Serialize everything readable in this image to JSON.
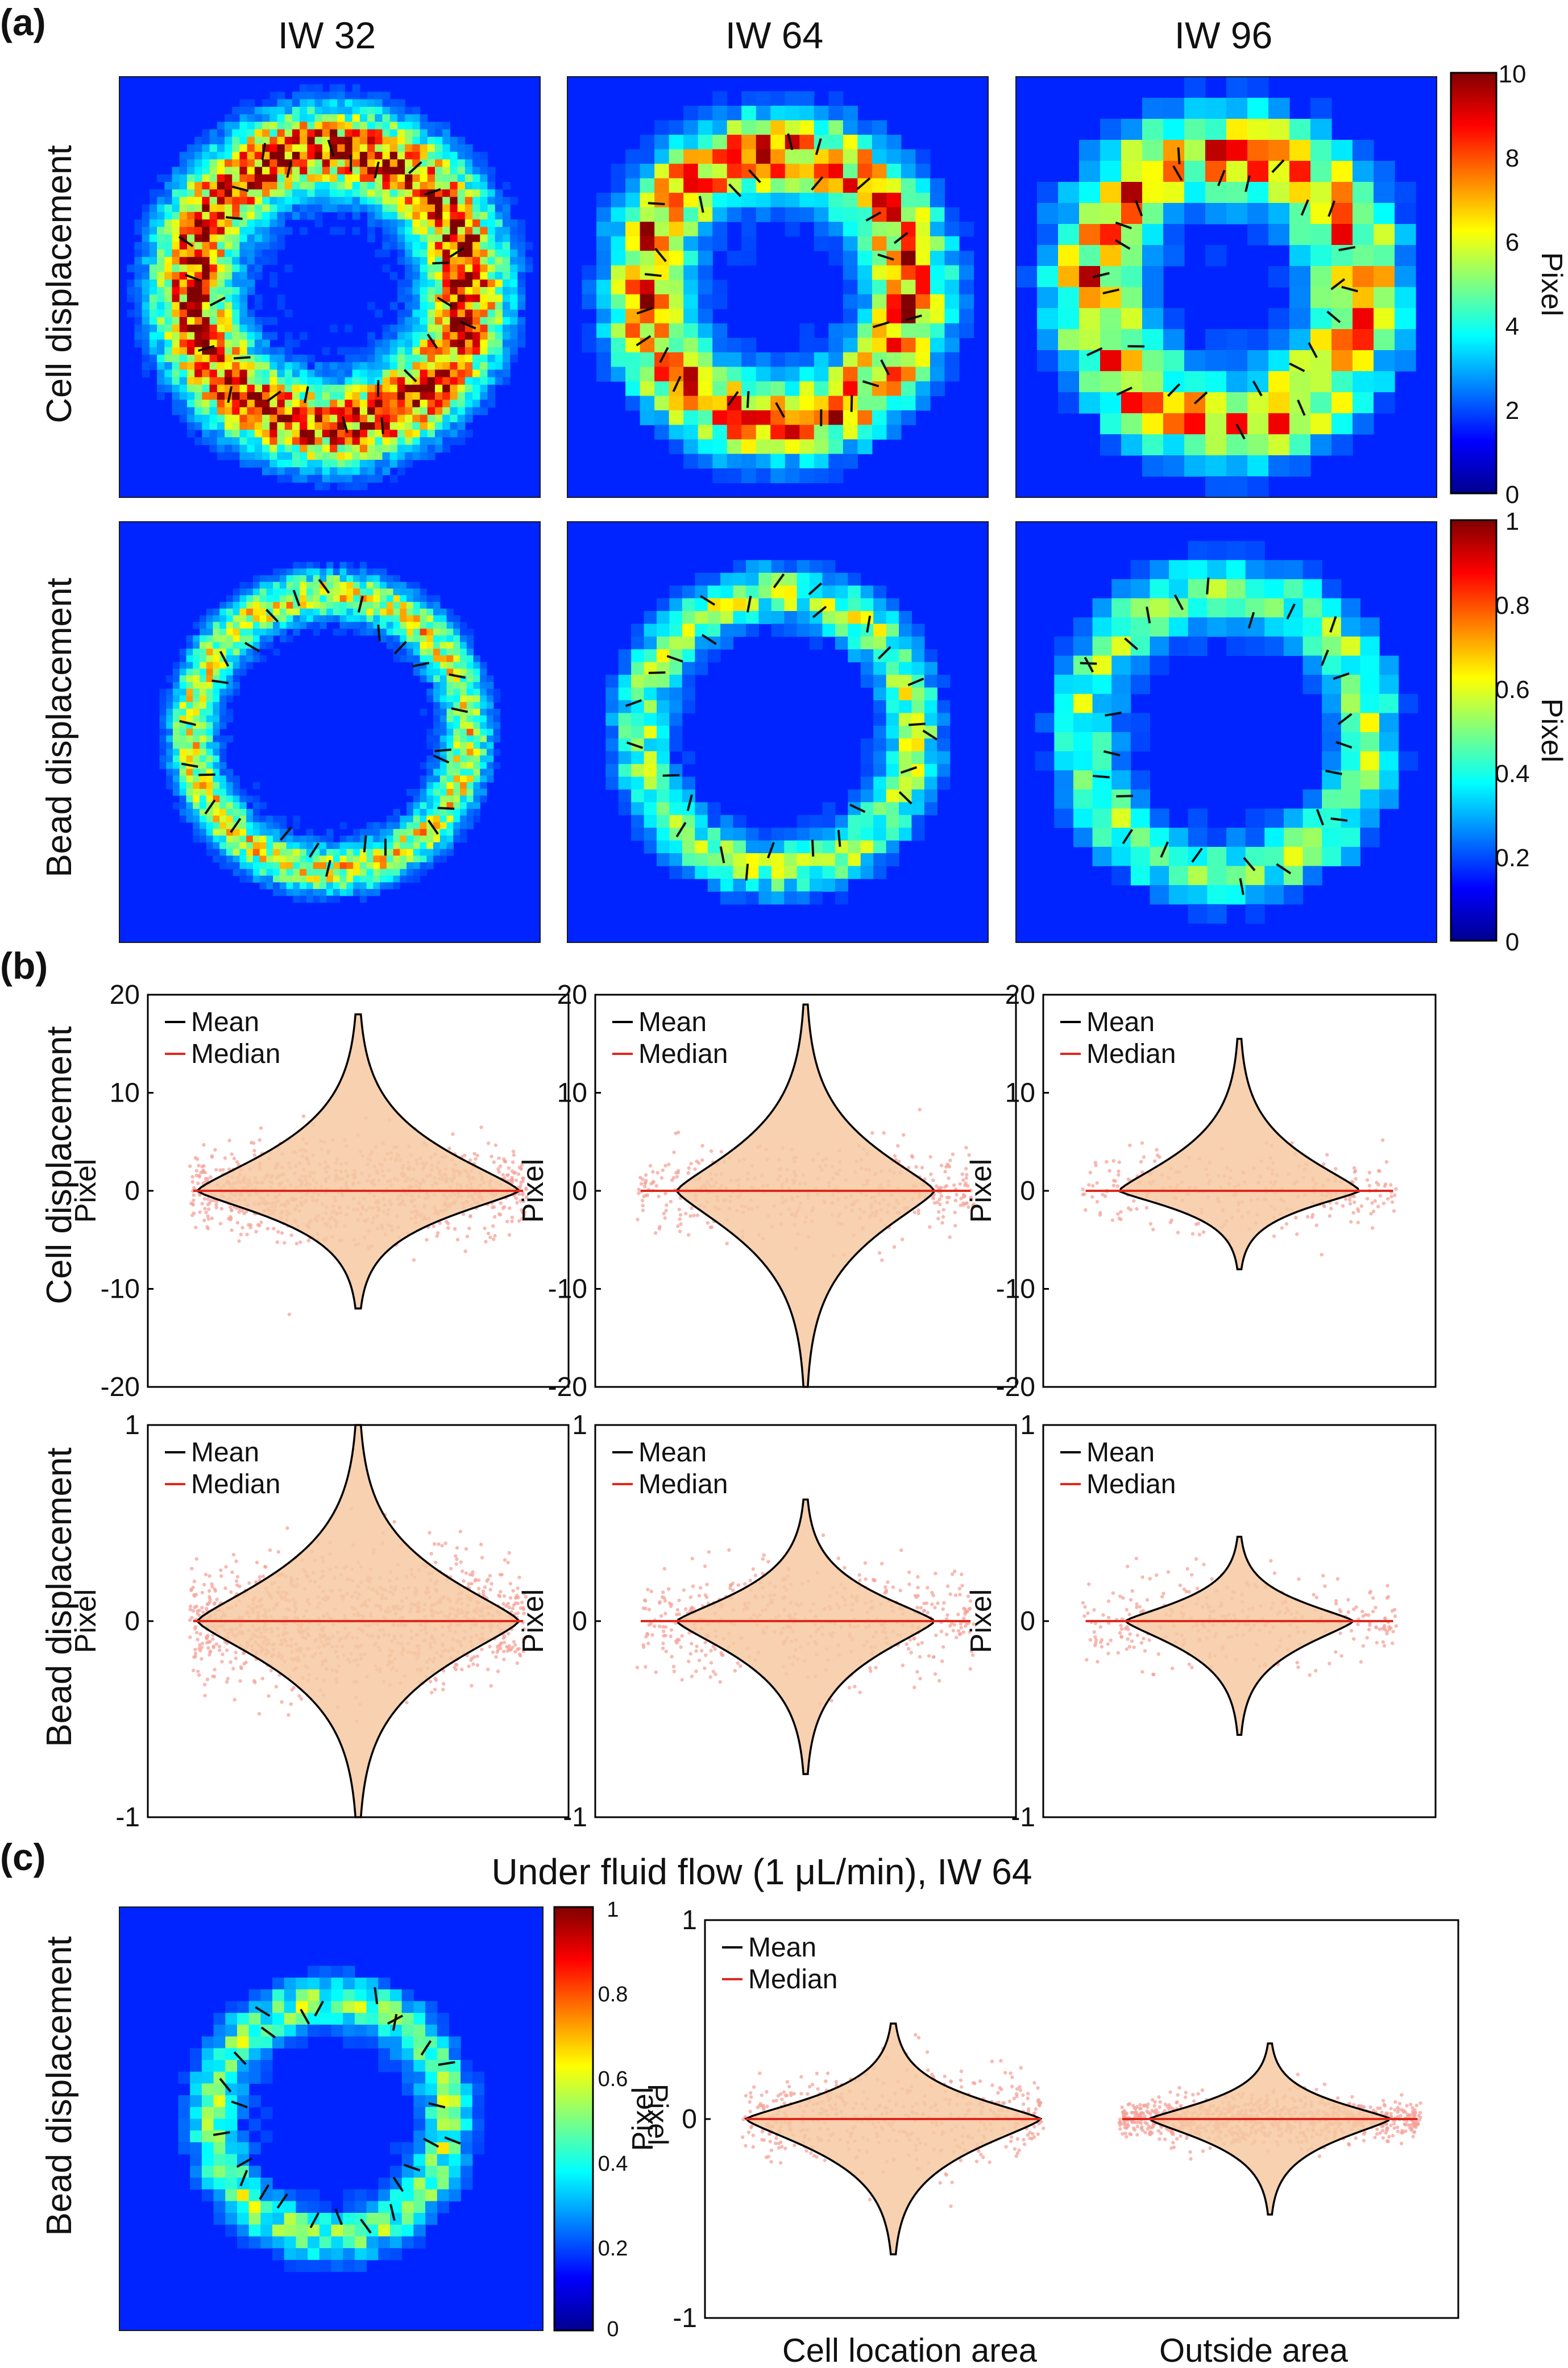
{
  "panels": {
    "a": "(a)",
    "b": "(b)",
    "c": "(c)"
  },
  "columns": [
    "IW 32",
    "IW 64",
    "IW 96"
  ],
  "row_labels": {
    "cell": "Cell displacement",
    "bead": "Bead displacement"
  },
  "colorbar_label": "Pixel",
  "colorbar_cell": {
    "ticks": [
      "10",
      "8",
      "6",
      "4",
      "2",
      "0"
    ],
    "range": [
      0,
      10
    ]
  },
  "colorbar_bead": {
    "ticks": [
      "1",
      "0.8",
      "0.6",
      "0.4",
      "0.2",
      "0"
    ],
    "range": [
      0,
      1
    ]
  },
  "colors": {
    "mean": "#000000",
    "median": "#e0281c",
    "scatter": "#f4a39a",
    "violin_fill": "#f6c9a2",
    "map_background": "#0a2fc8"
  },
  "heatmaps": [
    {
      "row": "cell",
      "column": "IW 32",
      "ring_radius": 0.33,
      "ring_width": 0.09,
      "peak": 0.85,
      "grain": 0.018
    },
    {
      "row": "cell",
      "column": "IW 64",
      "ring_radius": 0.32,
      "ring_width": 0.09,
      "peak": 0.75,
      "grain": 0.034
    },
    {
      "row": "cell",
      "column": "IW 96",
      "ring_radius": 0.32,
      "ring_width": 0.1,
      "peak": 0.7,
      "grain": 0.05
    },
    {
      "row": "bead",
      "column": "IW 32",
      "ring_radius": 0.33,
      "ring_width": 0.05,
      "peak": 0.55,
      "grain": 0.016
    },
    {
      "row": "bead",
      "column": "IW 64",
      "ring_radius": 0.33,
      "ring_width": 0.06,
      "peak": 0.45,
      "grain": 0.03
    },
    {
      "row": "bead",
      "column": "IW 96",
      "ring_radius": 0.34,
      "ring_width": 0.07,
      "peak": 0.42,
      "grain": 0.045
    }
  ],
  "chart_data": [
    {
      "type": "violin",
      "panel": "b",
      "row": "cell",
      "column": "IW 32",
      "ylabel": "Pixel",
      "ylim": [
        -20,
        20
      ],
      "yticks": [
        20,
        10,
        0,
        -10,
        -20
      ],
      "legend": [
        "Mean",
        "Median"
      ],
      "legend_placement": "top-left",
      "series": [
        {
          "name": "IW 32 cell",
          "max": 18,
          "min": -12,
          "body_width": 4.0,
          "scatter_spread": 6.0,
          "points": 900
        }
      ]
    },
    {
      "type": "violin",
      "panel": "b",
      "row": "cell",
      "column": "IW 64",
      "ylabel": "Pixel",
      "ylim": [
        -20,
        20
      ],
      "yticks": [
        20,
        10,
        0,
        -10,
        -20
      ],
      "legend": [
        "Mean",
        "Median"
      ],
      "legend_placement": "top-left",
      "series": [
        {
          "name": "IW 64 cell",
          "max": 19,
          "min": -20,
          "body_width": 3.0,
          "scatter_spread": 5.5,
          "points": 450
        }
      ]
    },
    {
      "type": "violin",
      "panel": "b",
      "row": "cell",
      "column": "IW 96",
      "ylabel": "Pixel",
      "ylim": [
        -20,
        20
      ],
      "yticks": [
        20,
        10,
        0,
        -10,
        -20
      ],
      "legend": [
        "Mean",
        "Median"
      ],
      "legend_placement": "top-left",
      "series": [
        {
          "name": "IW 96 cell",
          "max": 15.5,
          "min": -8,
          "body_width": 2.8,
          "scatter_spread": 5.0,
          "points": 280
        }
      ]
    },
    {
      "type": "violin",
      "panel": "b",
      "row": "bead",
      "column": "IW 32",
      "ylabel": "Pixel",
      "ylim": [
        -1,
        1
      ],
      "yticks": [
        1,
        0,
        -1
      ],
      "legend": [
        "Mean",
        "Median"
      ],
      "legend_placement": "top-left",
      "series": [
        {
          "name": "IW 32 bead",
          "max": 1,
          "min": -1,
          "body_width": 0.2,
          "scatter_spread": 0.4,
          "points": 1100
        }
      ]
    },
    {
      "type": "violin",
      "panel": "b",
      "row": "bead",
      "column": "IW 64",
      "ylabel": "Pixel",
      "ylim": [
        -1,
        1
      ],
      "yticks": [
        1,
        0,
        -1
      ],
      "legend": [
        "Mean",
        "Median"
      ],
      "legend_placement": "top-left",
      "series": [
        {
          "name": "IW 64 bead",
          "max": 0.62,
          "min": -0.78,
          "body_width": 0.15,
          "scatter_spread": 0.35,
          "points": 500
        }
      ]
    },
    {
      "type": "violin",
      "panel": "b",
      "row": "bead",
      "column": "IW 96",
      "ylabel": "Pixel",
      "ylim": [
        -1,
        1
      ],
      "yticks": [
        1,
        0,
        -1
      ],
      "legend": [
        "Mean",
        "Median"
      ],
      "legend_placement": "top-left",
      "series": [
        {
          "name": "IW 96 bead",
          "max": 0.43,
          "min": -0.58,
          "body_width": 0.13,
          "scatter_spread": 0.3,
          "points": 320
        }
      ]
    },
    {
      "type": "violin",
      "panel": "c",
      "title": "Under fluid flow (1 μL/min), IW 64",
      "ylabel": "Pixel",
      "ylim": [
        -1,
        1
      ],
      "yticks": [
        1,
        0,
        -1
      ],
      "legend": [
        "Mean",
        "Median"
      ],
      "legend_placement": "top-left",
      "categories": [
        "Cell location area",
        "Outside area"
      ],
      "series": [
        {
          "name": "Cell location area",
          "max": 0.48,
          "min": -0.68,
          "body_width": 0.28,
          "scatter_spread": 0.3,
          "points": 500
        },
        {
          "name": "Outside area",
          "max": 0.38,
          "min": -0.48,
          "body_width": 0.14,
          "scatter_spread": 0.14,
          "points": 900
        }
      ]
    }
  ]
}
